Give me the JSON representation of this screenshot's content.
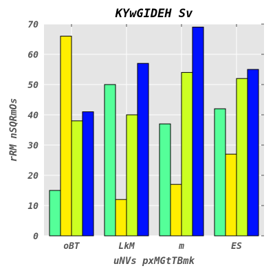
{
  "chart_data": {
    "type": "bar",
    "title": "KYwGIDEH Sv",
    "xlabel": "uNVs pxMGtTBmk",
    "ylabel": "rRM nSQRmOs",
    "categories": [
      "oBT",
      "LkM",
      "m",
      "ES"
    ],
    "series": [
      {
        "color": "#55ff99",
        "values": [
          15,
          50,
          37,
          42
        ]
      },
      {
        "color": "#ffee00",
        "values": [
          66,
          12,
          17,
          27
        ]
      },
      {
        "color": "#ccff22",
        "values": [
          38,
          40,
          54,
          52
        ]
      },
      {
        "color": "#0011ff",
        "values": [
          41,
          57,
          69,
          55
        ]
      }
    ],
    "ylim": [
      0,
      70
    ],
    "yticks": [
      0,
      10,
      20,
      30,
      40,
      50,
      60,
      70
    ],
    "grid": true,
    "background": "#e5e5e5",
    "grid_color": "#ffffff"
  }
}
